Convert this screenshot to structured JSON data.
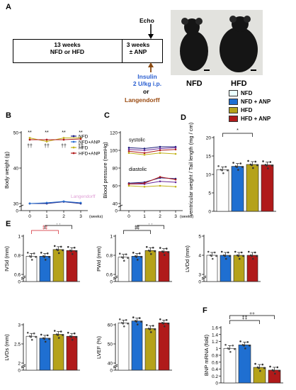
{
  "panels": {
    "A": {
      "letter": "A",
      "box1": [
        "13 weeks",
        "NFD or HFD"
      ],
      "box2": [
        "3 weeks",
        "± ANP"
      ],
      "echo": "Echo",
      "insulin": [
        "Insulin",
        "2 U/kg i.p."
      ],
      "or": "or",
      "langendorff": "Langendorff",
      "photo_labels": [
        "NFD",
        "HFD"
      ]
    },
    "B": {
      "letter": "B"
    },
    "C": {
      "letter": "C"
    },
    "D": {
      "letter": "D"
    },
    "E": {
      "letter": "E"
    },
    "F": {
      "letter": "F"
    }
  },
  "legend_D": {
    "items": [
      {
        "label": "NFD",
        "color": "#eaffff"
      },
      {
        "label": "NFD + ANP",
        "color": "#1f6fd1"
      },
      {
        "label": "HFD",
        "color": "#b5a21a"
      },
      {
        "label": "HFD + ANP",
        "color": "#b01a1a"
      }
    ]
  },
  "chart_data": [
    {
      "id": "B",
      "type": "line",
      "ylabel": "Body weight (g)",
      "xlabel": "(weeks)",
      "x": [
        0,
        1,
        2,
        3
      ],
      "yticks": [
        0,
        30,
        40,
        50
      ],
      "legend": [
        "NFD",
        "NFD+ANP",
        "HFD",
        "HFD+ANP"
      ],
      "legend_colors": [
        "#1a1a7a",
        "#2a6fd1",
        "#c2b21a",
        "#b01a1a"
      ],
      "series": [
        {
          "name": "NFD",
          "values": [
            30,
            30,
            30.5,
            30
          ]
        },
        {
          "name": "NFD+ANP",
          "values": [
            30,
            30.2,
            30.6,
            30.2
          ]
        },
        {
          "name": "HFD",
          "values": [
            48.5,
            47.5,
            48.5,
            48.5
          ]
        },
        {
          "name": "HFD+ANP",
          "values": [
            48,
            48,
            48,
            48.2
          ]
        }
      ],
      "annotations": [
        "**",
        "**",
        "**",
        "**",
        "††",
        "††",
        "††",
        "††"
      ],
      "overlay_text": "Langendorff"
    },
    {
      "id": "C",
      "type": "line",
      "ylabel": "Blood pressure (mmHg)",
      "xlabel": "(weeks)",
      "x": [
        0,
        1,
        2,
        3
      ],
      "yticks": [
        0,
        40,
        60,
        80,
        100,
        120
      ],
      "labels": [
        "systolic",
        "diastolic"
      ],
      "systolic": [
        {
          "name": "NFD",
          "values": [
            103,
            102,
            104,
            104
          ]
        },
        {
          "name": "NFD+ANP",
          "values": [
            101,
            100,
            102,
            103
          ]
        },
        {
          "name": "HFD",
          "values": [
            97,
            95,
            97,
            96
          ]
        },
        {
          "name": "HFD+ANP",
          "values": [
            99,
            97,
            100,
            101
          ]
        }
      ],
      "diastolic": [
        {
          "name": "NFD",
          "values": [
            63,
            64,
            69,
            68
          ]
        },
        {
          "name": "NFD+ANP",
          "values": [
            62,
            62,
            65,
            64
          ]
        },
        {
          "name": "HFD",
          "values": [
            60,
            59,
            60,
            59
          ]
        },
        {
          "name": "HFD+ANP",
          "values": [
            62,
            63,
            70,
            67
          ]
        }
      ]
    },
    {
      "id": "D",
      "type": "bar",
      "ylabel": "Left ventricular weight / Tail length (mg / cm)",
      "categories": [
        "NFD",
        "NFD+ANP",
        "HFD",
        "HFD+ANP"
      ],
      "values": [
        11.3,
        12.2,
        12.7,
        12.6
      ],
      "yticks": [
        0,
        5,
        10,
        15,
        20
      ],
      "ylim": [
        0,
        20
      ],
      "sig": [
        {
          "from": 0,
          "to": 2,
          "label": "*"
        }
      ]
    },
    {
      "id": "E1",
      "type": "bar",
      "ylabel": "IVSd (mm)",
      "categories": [
        "NFD",
        "NFD+ANP",
        "HFD",
        "HFD+ANP"
      ],
      "values": [
        0.79,
        0.79,
        0.86,
        0.85
      ],
      "yticks": [
        0.0,
        0.6,
        0.8,
        1.0
      ],
      "broken": true,
      "sig": [
        {
          "from": 0,
          "to": 2,
          "label": "‡‡"
        },
        {
          "from": 1,
          "to": 3,
          "label": "††"
        }
      ]
    },
    {
      "id": "E2",
      "type": "bar",
      "ylabel": "PWd (mm)",
      "categories": [
        "NFD",
        "NFD+ANP",
        "HFD",
        "HFD+ANP"
      ],
      "values": [
        0.78,
        0.79,
        0.85,
        0.84
      ],
      "yticks": [
        0.0,
        0.6,
        0.8,
        1.0
      ],
      "broken": true,
      "sig": [
        {
          "from": 0,
          "to": 2,
          "label": "‡‡"
        },
        {
          "from": 1,
          "to": 3,
          "label": "††"
        }
      ]
    },
    {
      "id": "E3",
      "type": "bar",
      "ylabel": "LVDd (mm)",
      "categories": [
        "NFD",
        "NFD+ANP",
        "HFD",
        "HFD+ANP"
      ],
      "values": [
        4.0,
        4.0,
        4.0,
        4.0
      ],
      "yticks": [
        0,
        3,
        4,
        5
      ],
      "broken": true
    },
    {
      "id": "E4",
      "type": "bar",
      "ylabel": "LVDs (mm)",
      "categories": [
        "NFD",
        "NFD+ANP",
        "HFD",
        "HFD+ANP"
      ],
      "values": [
        2.7,
        2.65,
        2.75,
        2.7
      ],
      "yticks": [
        0.0,
        2.0,
        2.5,
        3.0
      ],
      "broken": true
    },
    {
      "id": "E5",
      "type": "bar",
      "ylabel": "LVEF (%)",
      "categories": [
        "NFD",
        "NFD+ANP",
        "HFD",
        "HFD+ANP"
      ],
      "values": [
        61,
        62,
        58,
        61
      ],
      "yticks": [
        0,
        40,
        50,
        60
      ],
      "broken": true
    },
    {
      "id": "F",
      "type": "bar",
      "ylabel": "BNP mRNA (fold)",
      "categories": [
        "NFD",
        "NFD+ANP",
        "HFD",
        "HFD+ANP"
      ],
      "values": [
        1.0,
        1.1,
        0.45,
        0.37
      ],
      "yticks": [
        0.0,
        0.2,
        0.4,
        0.6,
        0.8,
        1.0,
        1.2,
        1.4,
        1.6
      ],
      "ylim": [
        0,
        1.6
      ],
      "sig": [
        {
          "from": 0,
          "to": 2,
          "label": "‡‡"
        },
        {
          "from": 0,
          "to": 3,
          "label": "‡‡"
        }
      ]
    }
  ]
}
